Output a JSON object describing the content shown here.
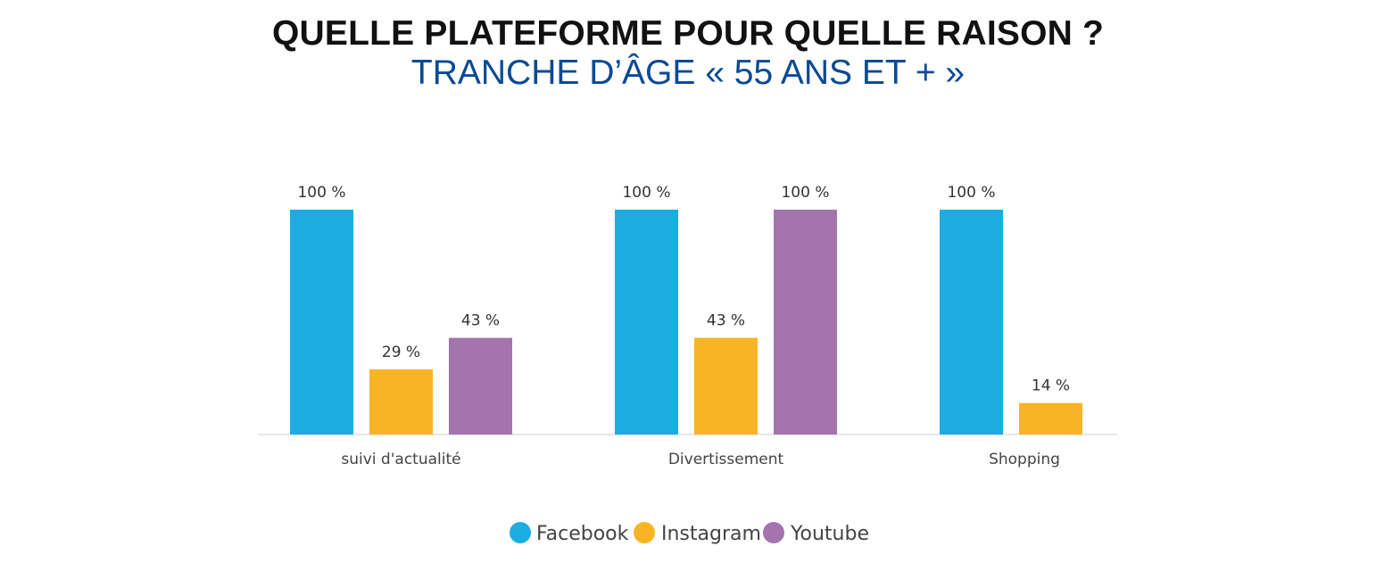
{
  "header": {
    "title": "QUELLE PLATEFORME POUR QUELLE RAISON ?",
    "subtitle": "TRANCHE D’ÂGE « 55 ANS ET + »"
  },
  "chart_data": {
    "type": "bar",
    "title": "QUELLE PLATEFORME POUR QUELLE RAISON ?",
    "subtitle": "TRANCHE D’ÂGE « 55 ANS ET + »",
    "categories": [
      "suivi d'actualité",
      "Divertissement",
      "Shopping"
    ],
    "series": [
      {
        "name": "Facebook",
        "color": "#1badE2",
        "values": [
          100,
          100,
          100
        ],
        "labels": [
          "100 %",
          "100 %",
          "100 %"
        ]
      },
      {
        "name": "Instagram",
        "color": "#f7b525",
        "values": [
          29,
          43,
          14
        ],
        "labels": [
          "29 %",
          "43 %",
          "14 %"
        ]
      },
      {
        "name": "Youtube",
        "color": "#a474af",
        "values": [
          43,
          100,
          null
        ],
        "labels": [
          "43 %",
          "100 %",
          ""
        ]
      }
    ],
    "unit": "%",
    "ylim": [
      0,
      100
    ],
    "grid": false,
    "legend_position": "bottom-center"
  }
}
